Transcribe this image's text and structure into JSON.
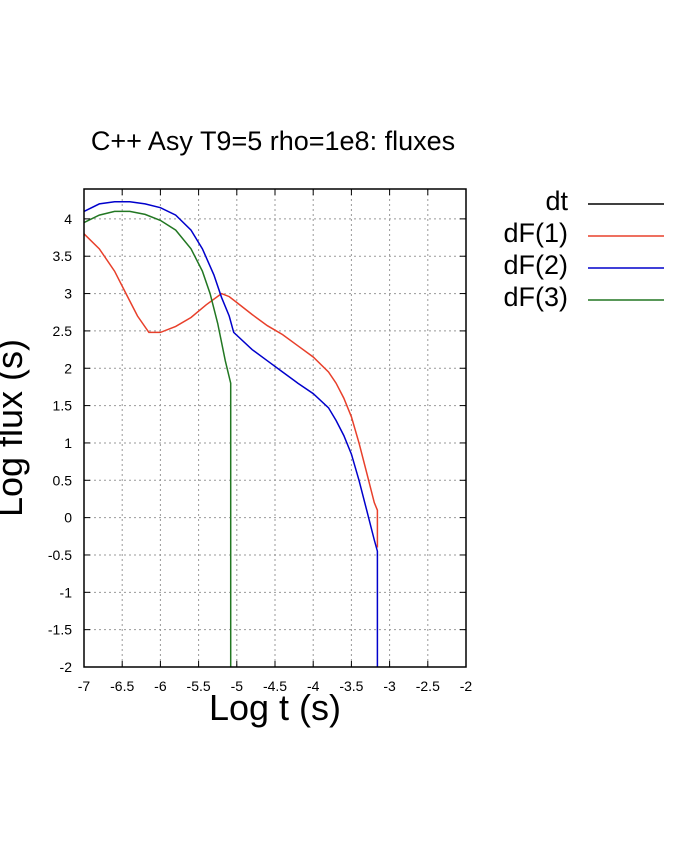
{
  "chart_data": {
    "type": "line",
    "title": "C++ Asy T9=5 rho=1e8: fluxes",
    "xlabel": "Log t (s)",
    "ylabel": "Log flux (s)",
    "xlim": [
      -7,
      -2
    ],
    "ylim": [
      -2,
      4.4
    ],
    "grid": true,
    "legend_position": "right",
    "xticks": [
      "-7",
      "-6.5",
      "-6",
      "-5.5",
      "-5",
      "-4.5",
      "-4",
      "-3.5",
      "-3",
      "-2.5",
      "-2"
    ],
    "yticks": [
      "-2",
      "-1.5",
      "-1",
      "-0.5",
      "0",
      "0.5",
      "1",
      "1.5",
      "2",
      "2.5",
      "3",
      "3.5",
      "4"
    ],
    "series": [
      {
        "name": "dt",
        "color": "#000000",
        "x": [],
        "y": []
      },
      {
        "name": "dF(1)",
        "color": "#e8402b",
        "x": [
          -7.0,
          -6.8,
          -6.6,
          -6.45,
          -6.3,
          -6.15,
          -6.0,
          -5.8,
          -5.6,
          -5.4,
          -5.2,
          -5.1,
          -5.0,
          -4.8,
          -4.6,
          -4.4,
          -4.2,
          -4.0,
          -3.8,
          -3.7,
          -3.6,
          -3.5,
          -3.4,
          -3.3,
          -3.2,
          -3.16,
          -3.16
        ],
        "y": [
          3.8,
          3.6,
          3.3,
          3.0,
          2.7,
          2.48,
          2.48,
          2.56,
          2.68,
          2.85,
          3.0,
          2.96,
          2.88,
          2.72,
          2.57,
          2.45,
          2.3,
          2.15,
          1.95,
          1.8,
          1.6,
          1.35,
          1.0,
          0.6,
          0.2,
          0.1,
          -0.4
        ]
      },
      {
        "name": "dF(2)",
        "color": "#0000cc",
        "x": [
          -7.0,
          -6.8,
          -6.6,
          -6.4,
          -6.2,
          -6.0,
          -5.8,
          -5.6,
          -5.45,
          -5.3,
          -5.2,
          -5.1,
          -5.04,
          -4.8,
          -4.6,
          -4.4,
          -4.2,
          -4.0,
          -3.8,
          -3.7,
          -3.6,
          -3.5,
          -3.4,
          -3.3,
          -3.2,
          -3.16,
          -3.16
        ],
        "y": [
          4.1,
          4.2,
          4.23,
          4.23,
          4.2,
          4.15,
          4.05,
          3.85,
          3.6,
          3.25,
          2.95,
          2.7,
          2.48,
          2.25,
          2.1,
          1.95,
          1.8,
          1.66,
          1.47,
          1.3,
          1.1,
          0.85,
          0.5,
          0.1,
          -0.3,
          -0.45,
          -2.0
        ]
      },
      {
        "name": "dF(3)",
        "color": "#227722",
        "x": [
          -7.0,
          -6.8,
          -6.6,
          -6.4,
          -6.2,
          -6.0,
          -5.8,
          -5.6,
          -5.45,
          -5.35,
          -5.25,
          -5.15,
          -5.08,
          -5.08
        ],
        "y": [
          3.95,
          4.05,
          4.1,
          4.1,
          4.06,
          3.98,
          3.85,
          3.6,
          3.3,
          3.0,
          2.6,
          2.1,
          1.8,
          -2.0
        ]
      }
    ]
  }
}
